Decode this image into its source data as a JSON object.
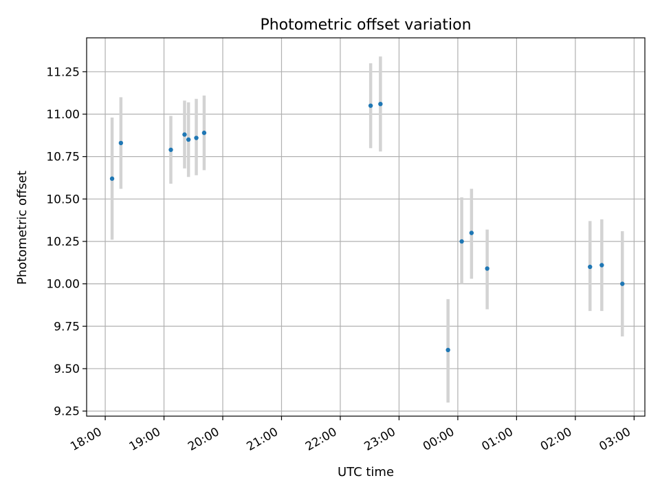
{
  "chart_data": {
    "type": "scatter",
    "title": "Photometric offset variation",
    "xlabel": "UTC time",
    "ylabel": "Photometric offset",
    "grid": true,
    "x_ticks": [
      "18:00",
      "19:00",
      "20:00",
      "21:00",
      "22:00",
      "23:00",
      "00:00",
      "01:00",
      "02:00",
      "03:00"
    ],
    "y_ticks": [
      "9.25",
      "9.50",
      "9.75",
      "10.00",
      "10.25",
      "10.50",
      "10.75",
      "11.00",
      "11.25"
    ],
    "x_range": [
      "17:41",
      "03:11"
    ],
    "ylim": [
      9.22,
      11.45
    ],
    "point_color": "#1f77b4",
    "errorbar_color": "#d3d3d3",
    "points": [
      {
        "time": "18:07",
        "y": 10.62,
        "err_low": 10.26,
        "err_high": 10.98
      },
      {
        "time": "18:16",
        "y": 10.83,
        "err_low": 10.56,
        "err_high": 11.1
      },
      {
        "time": "19:07",
        "y": 10.79,
        "err_low": 10.59,
        "err_high": 10.99
      },
      {
        "time": "19:21",
        "y": 10.88,
        "err_low": 10.68,
        "err_high": 11.08
      },
      {
        "time": "19:25",
        "y": 10.85,
        "err_low": 10.63,
        "err_high": 11.07
      },
      {
        "time": "19:33",
        "y": 10.86,
        "err_low": 10.64,
        "err_high": 11.09
      },
      {
        "time": "19:41",
        "y": 10.89,
        "err_low": 10.67,
        "err_high": 11.11
      },
      {
        "time": "22:31",
        "y": 11.05,
        "err_low": 10.8,
        "err_high": 11.3
      },
      {
        "time": "22:41",
        "y": 11.06,
        "err_low": 10.78,
        "err_high": 11.34
      },
      {
        "time": "23:50",
        "y": 9.61,
        "err_low": 9.3,
        "err_high": 9.91
      },
      {
        "time": "00:04",
        "y": 10.25,
        "err_low": 10.0,
        "err_high": 10.51
      },
      {
        "time": "00:14",
        "y": 10.3,
        "err_low": 10.03,
        "err_high": 10.56
      },
      {
        "time": "00:30",
        "y": 10.09,
        "err_low": 9.85,
        "err_high": 10.32
      },
      {
        "time": "02:15",
        "y": 10.1,
        "err_low": 9.84,
        "err_high": 10.37
      },
      {
        "time": "02:27",
        "y": 10.11,
        "err_low": 9.84,
        "err_high": 10.38
      },
      {
        "time": "02:48",
        "y": 10.0,
        "err_low": 9.69,
        "err_high": 10.31
      }
    ]
  }
}
